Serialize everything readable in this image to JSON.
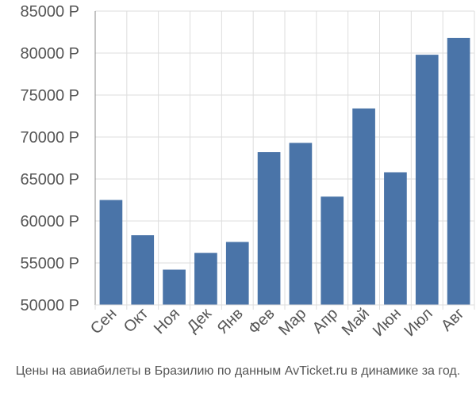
{
  "chart_data": {
    "type": "bar",
    "categories": [
      "Сен",
      "Окт",
      "Ноя",
      "Дек",
      "Янв",
      "Фев",
      "Мар",
      "Апр",
      "Май",
      "Июн",
      "Июл",
      "Авг"
    ],
    "values": [
      62500,
      58300,
      54200,
      56200,
      57500,
      68200,
      69300,
      62900,
      73400,
      65800,
      79800,
      81800
    ],
    "ylim": [
      50000,
      85000
    ],
    "yticks": [
      {
        "value": 50000,
        "label": "50000 Р"
      },
      {
        "value": 55000,
        "label": "55000 Р"
      },
      {
        "value": 60000,
        "label": "60000 Р"
      },
      {
        "value": 65000,
        "label": "65000 Р"
      },
      {
        "value": 70000,
        "label": "70000 Р"
      },
      {
        "value": 75000,
        "label": "75000 Р"
      },
      {
        "value": 80000,
        "label": "80000 Р"
      },
      {
        "value": 85000,
        "label": "85000 Р"
      }
    ],
    "grid": true,
    "bar_color": "#4a74a8",
    "grid_color": "#dddddd",
    "axis_color": "#888888"
  },
  "caption": "Цены на авиабилеты в Бразилию по данным AvTicket.ru в динамике за год."
}
